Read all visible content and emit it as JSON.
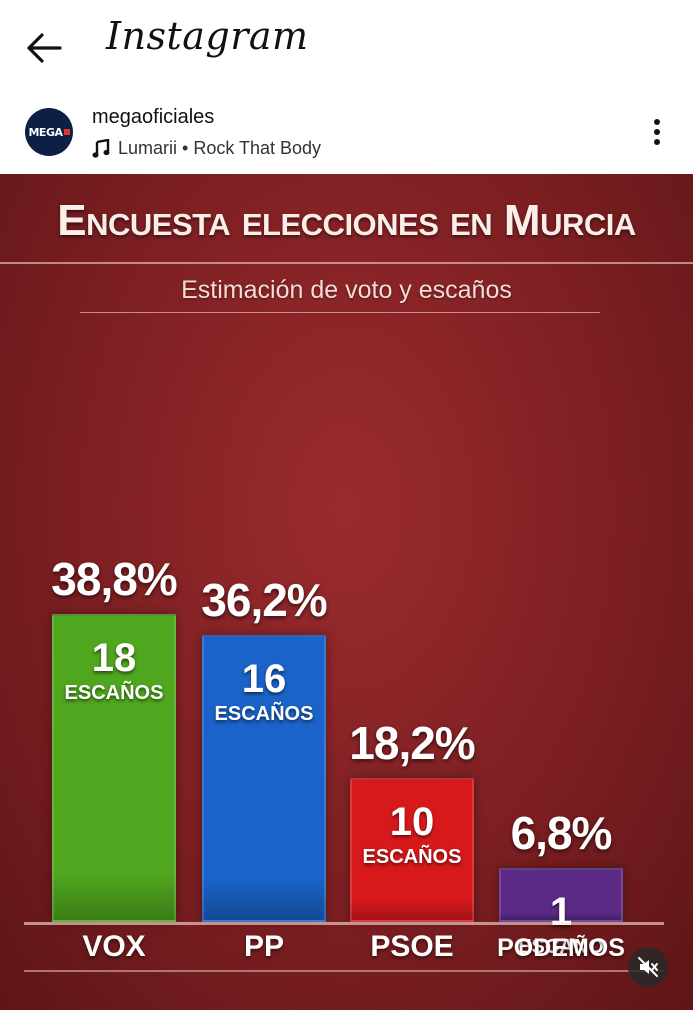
{
  "app": {
    "name": "Instagram"
  },
  "post_header": {
    "username": "megaoficiales",
    "avatar_text": "MEGA",
    "music": "Lumarii • Rock That Body"
  },
  "icons": {
    "back": "arrow-left-icon",
    "music": "music-note-icon",
    "more": "more-vertical-icon",
    "mute": "speaker-muted-icon"
  },
  "colors": {
    "background": "#8b2426",
    "vox": "#4fa61f",
    "pp": "#1a63c9",
    "psoe": "#d8191c",
    "podemos": "#5b2a86"
  },
  "chart_data": {
    "type": "bar",
    "title": "Encuesta elecciones en Murcia",
    "subtitle": "Estimación de voto y escaños",
    "categories": [
      "VOX",
      "PP",
      "PSOE",
      "PODEMOS"
    ],
    "values": [
      38.8,
      36.2,
      18.2,
      6.8
    ],
    "value_labels": [
      "38,8%",
      "36,2%",
      "18,2%",
      "6,8%"
    ],
    "seats": [
      18,
      16,
      10,
      1
    ],
    "seat_labels": [
      "18",
      "16",
      "10",
      "1"
    ],
    "seat_units": [
      "ESCAÑOS",
      "ESCAÑOS",
      "ESCAÑOS",
      "ESCAÑO"
    ],
    "ylim": [
      0,
      40
    ],
    "grid": false,
    "legend": "none"
  }
}
